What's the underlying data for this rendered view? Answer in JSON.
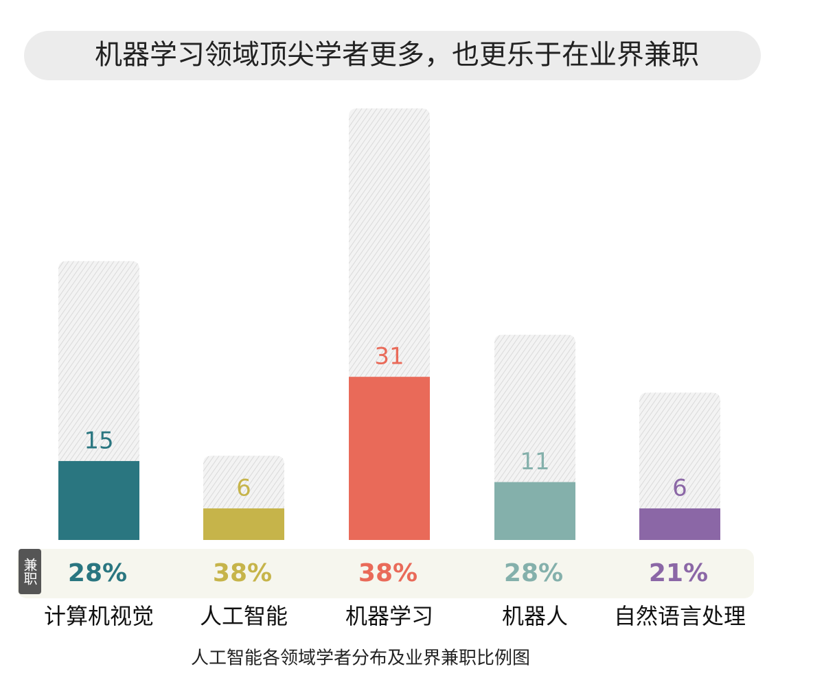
{
  "chart_data": {
    "type": "bar",
    "title": "机器学习领域顶尖学者更多，也更乐于在业界兼职",
    "caption": "人工智能各领域学者分布及业界兼职比例图",
    "categories": [
      "计算机视觉",
      "人工智能",
      "机器学习",
      "机器人",
      "自然语言处理"
    ],
    "values": [
      15,
      6,
      31,
      11,
      6
    ],
    "totals": [
      53,
      16,
      82,
      39,
      28
    ],
    "colors": [
      "#2a7680",
      "#c6b44a",
      "#e96a59",
      "#84b0ab",
      "#8b67a6"
    ],
    "share_label": "兼职",
    "share": {
      "values": [
        28,
        38,
        38,
        28,
        21
      ],
      "value_labels": [
        "28%",
        "38%",
        "38%",
        "28%",
        "21%"
      ]
    },
    "ylim": [
      0,
      85
    ]
  }
}
